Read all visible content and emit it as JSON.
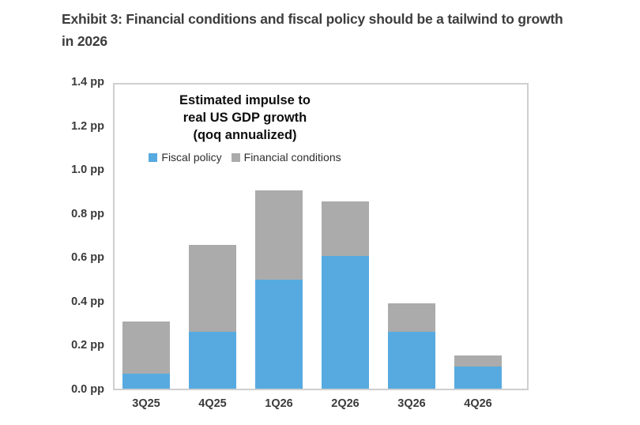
{
  "exhibit": {
    "title_line1": "Exhibit 3: Financial conditions and fiscal policy should be a tailwind to growth",
    "title_line2": "in 2026"
  },
  "chart_data": {
    "type": "bar",
    "stacked": true,
    "title": "Estimated impulse to real US GDP growth (qoq annualized)",
    "title_lines": [
      "Estimated impulse to",
      "real US GDP growth",
      "(qoq annualized)"
    ],
    "categories": [
      "3Q25",
      "4Q25",
      "1Q26",
      "2Q26",
      "3Q26",
      "4Q26"
    ],
    "series": [
      {
        "name": "Fiscal policy",
        "color": "#57aae0",
        "values": [
          0.07,
          0.26,
          0.5,
          0.61,
          0.26,
          0.1
        ]
      },
      {
        "name": "Financial conditions",
        "color": "#ababab",
        "values": [
          0.24,
          0.4,
          0.41,
          0.25,
          0.13,
          0.05
        ]
      }
    ],
    "totals": [
      0.31,
      0.66,
      0.91,
      0.86,
      0.39,
      0.15
    ],
    "unit": "pp",
    "ylim": [
      0,
      1.4
    ],
    "yticks": [
      0,
      0.2,
      0.4,
      0.6,
      0.8,
      1.0,
      1.2,
      1.4
    ],
    "ytick_labels": [
      "0.0 pp",
      "0.2 pp",
      "0.4 pp",
      "0.6 pp",
      "0.8 pp",
      "1.0 pp",
      "1.2 pp",
      "1.4 pp"
    ],
    "grid": false,
    "legend_position": "top-inside",
    "plot_border_color": "#cfcfcf",
    "background": "#ffffff"
  }
}
